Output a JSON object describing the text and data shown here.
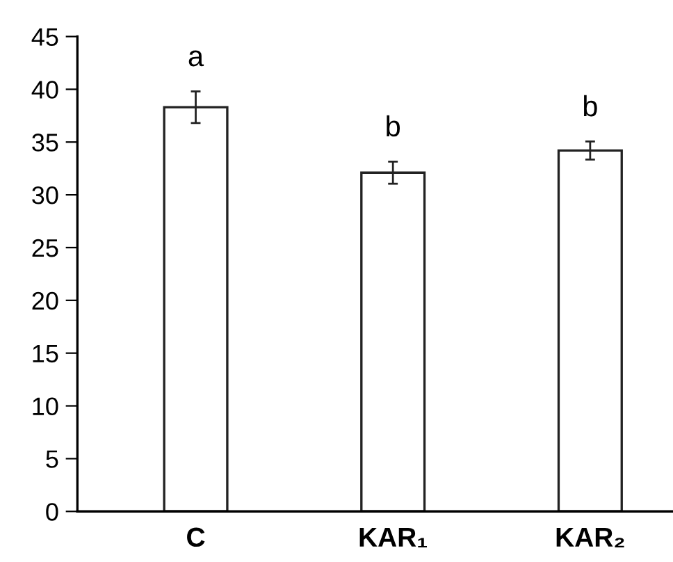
{
  "chart_data": {
    "type": "bar",
    "categories": [
      "C",
      "KAR₁",
      "KAR₂"
    ],
    "values": [
      38.3,
      32.1,
      34.2
    ],
    "errors": [
      1.5,
      1.05,
      0.85
    ],
    "color": "#ffffff",
    "ylim": [
      0,
      45
    ],
    "yticks": [
      0,
      5,
      10,
      15,
      20,
      25,
      30,
      35,
      40,
      45
    ],
    "grid": false,
    "legend": false,
    "annotations": [
      "a",
      "b",
      "b"
    ]
  }
}
